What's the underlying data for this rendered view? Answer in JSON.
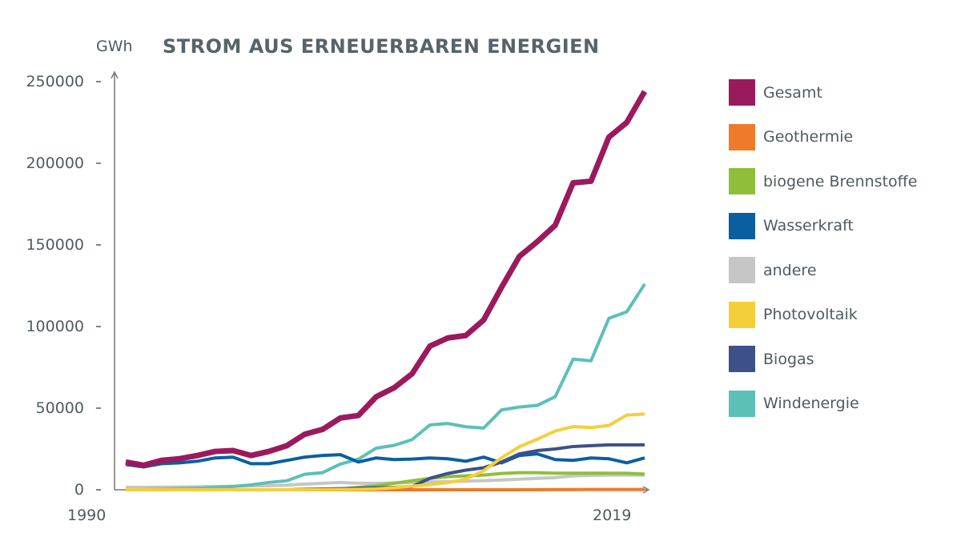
{
  "chart_data": {
    "type": "line",
    "title": "STROM AUS ERNEUERBAREN ENERGIEN",
    "ylabel": "GWh",
    "xlabel": "",
    "ylim": [
      0,
      250000
    ],
    "yticks": [
      "250000",
      "200000",
      "150000",
      "100000",
      "50000",
      "0"
    ],
    "xtick_labels": [
      "1990",
      "2019"
    ],
    "grid": false,
    "legend_position": "right",
    "x": [
      1990,
      1991,
      1992,
      1993,
      1994,
      1995,
      1996,
      1997,
      1998,
      1999,
      2000,
      2001,
      2002,
      2003,
      2004,
      2005,
      2006,
      2007,
      2008,
      2009,
      2010,
      2011,
      2012,
      2013,
      2014,
      2015,
      2016,
      2017,
      2018,
      2019
    ],
    "series": [
      {
        "name": "Gesamt",
        "color": "#9b1a5e",
        "values": [
          17000,
          15000,
          18000,
          19000,
          21000,
          23500,
          24000,
          21000,
          23500,
          27000,
          34000,
          37000,
          44000,
          45500,
          57000,
          62500,
          71000,
          88000,
          93000,
          94500,
          104000,
          124000,
          143000,
          152000,
          162000,
          188000,
          189000,
          216000,
          225000,
          244000
        ]
      },
      {
        "name": "Geothermie",
        "color": "#ee7a2a",
        "values": [
          0,
          0,
          0,
          0,
          0,
          0,
          0,
          0,
          0,
          0,
          0,
          0,
          0,
          0,
          0,
          0,
          0,
          0,
          20,
          20,
          30,
          20,
          30,
          80,
          100,
          130,
          180,
          160,
          180,
          200
        ]
      },
      {
        "name": "biogene Brennstoffe",
        "color": "#8fbf3a",
        "values": [
          0,
          0,
          0,
          0,
          0,
          0,
          0,
          0,
          0,
          0,
          0,
          200,
          500,
          1500,
          2500,
          4000,
          5500,
          7000,
          8000,
          8500,
          9000,
          10000,
          10500,
          10500,
          10200,
          10200,
          10200,
          10200,
          10100,
          9600
        ]
      },
      {
        "name": "Wasserkraft",
        "color": "#0a5fa0",
        "values": [
          15500,
          14000,
          16000,
          16500,
          17500,
          19500,
          20000,
          16000,
          16000,
          18000,
          20000,
          21000,
          21500,
          17000,
          19500,
          18500,
          18800,
          19500,
          19000,
          17500,
          20000,
          16500,
          21000,
          22000,
          18500,
          18000,
          19500,
          19000,
          16500,
          19500
        ]
      },
      {
        "name": "andere",
        "color": "#c6c6c6",
        "values": [
          1500,
          1500,
          1600,
          1700,
          1800,
          2000,
          2200,
          2300,
          2500,
          2800,
          3500,
          4000,
          4500,
          4000,
          4000,
          4200,
          4500,
          4800,
          5000,
          5300,
          5600,
          6000,
          6500,
          7000,
          7500,
          8500,
          8800,
          9000,
          9000,
          9000
        ]
      },
      {
        "name": "Photovoltaik",
        "color": "#f5cf3a",
        "values": [
          0,
          0,
          0,
          0,
          0,
          0,
          0,
          0,
          0,
          0,
          60,
          100,
          200,
          300,
          550,
          1300,
          2200,
          3100,
          4400,
          6600,
          11700,
          19600,
          26400,
          31000,
          36000,
          38700,
          38100,
          39400,
          45800,
          46400
        ]
      },
      {
        "name": "Biogas",
        "color": "#3d5188",
        "values": [
          0,
          0,
          0,
          0,
          0,
          0,
          0,
          0,
          0,
          0,
          300,
          500,
          700,
          900,
          1200,
          1500,
          2000,
          7000,
          10000,
          12000,
          13500,
          17000,
          22000,
          24000,
          25000,
          26500,
          27000,
          27500,
          27500,
          27500
        ]
      },
      {
        "name": "Windenergie",
        "color": "#5bc0b8",
        "values": [
          0,
          70,
          280,
          600,
          900,
          1500,
          2000,
          3000,
          4500,
          5500,
          9500,
          10500,
          15800,
          18700,
          25500,
          27200,
          30700,
          39700,
          40600,
          38600,
          37800,
          48900,
          50700,
          51700,
          57000,
          80000,
          79000,
          105000,
          109000,
          126000
        ]
      }
    ]
  }
}
